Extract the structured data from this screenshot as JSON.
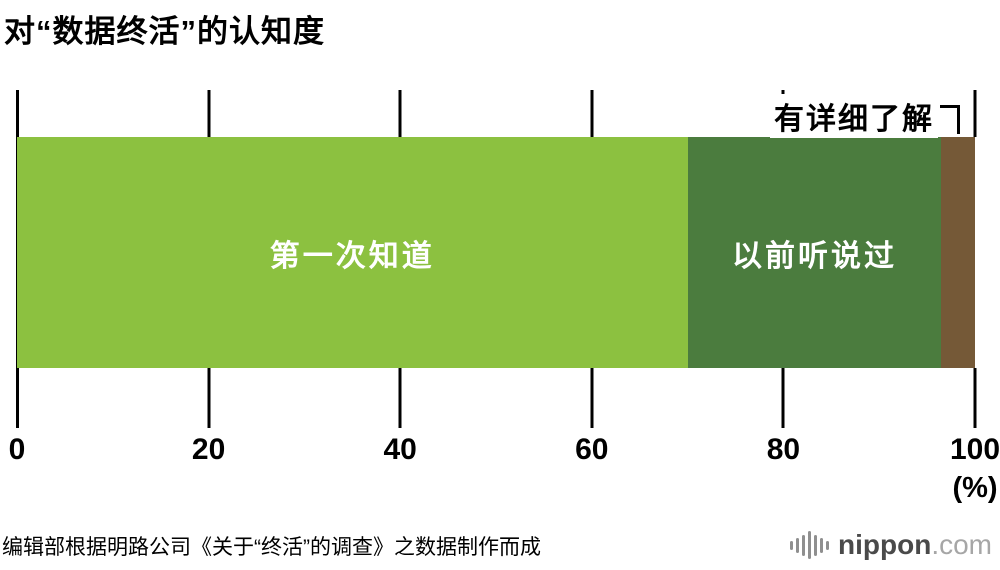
{
  "title": "对“数据终活”的认知度",
  "chart_data": {
    "type": "bar",
    "orientation": "horizontal",
    "stacked": true,
    "title": "对“数据终活”的认知度",
    "series": [
      {
        "name": "第一次知道",
        "value": 70.0,
        "color": "#8CC140",
        "label_inside": true
      },
      {
        "name": "以前听说过",
        "value": 26.5,
        "color": "#4B7C3E",
        "label_inside": true
      },
      {
        "name": "有详细了解",
        "value": 3.5,
        "color": "#755937",
        "label_inside": false
      }
    ],
    "x_ticks": [
      "0",
      "20",
      "40",
      "60",
      "80",
      "100"
    ],
    "x_tick_values": [
      0,
      20,
      40,
      60,
      80,
      100
    ],
    "xlim": [
      0,
      100
    ],
    "x_unit": "(%)",
    "legend": "none",
    "grid": "ticks-only"
  },
  "annotation": {
    "label": "有详细了解"
  },
  "source": "编辑部根据明路公司《关于“终活”的调查》之数据制作而成",
  "logo": {
    "name": "nippon",
    "tld": ".com",
    "icon": "audio-bars-icon"
  },
  "colors": {
    "axis": "#000000",
    "background": "#ffffff",
    "bar_label": "#ffffff"
  }
}
